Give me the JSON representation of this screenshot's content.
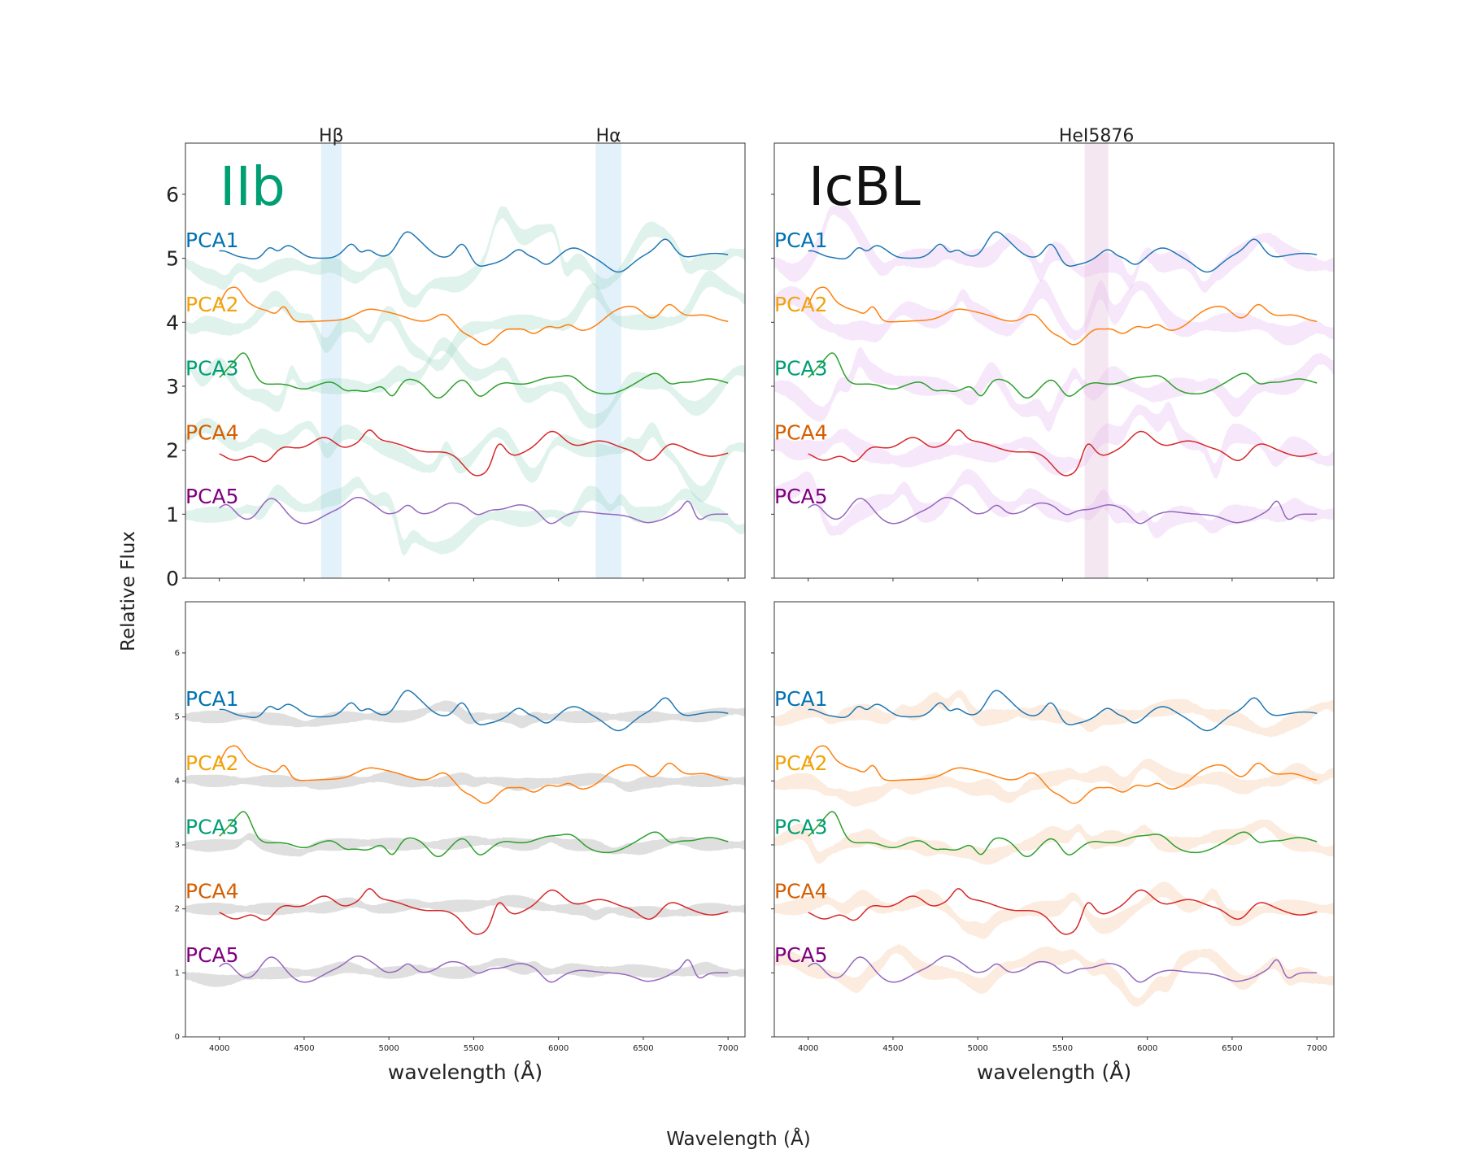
{
  "figure": {
    "ylabel": "Relative Flux",
    "xlabel": "Wavelength (Å)"
  },
  "colors": {
    "pca_curves": [
      "#1f77b4",
      "#ff7f0e",
      "#2ca02c",
      "#d62728",
      "#9467bd"
    ],
    "pca_labels": [
      "#0072b2",
      "#f0a30a",
      "#009e73",
      "#d55e00",
      "#800080"
    ],
    "IIb_title": "#009e73",
    "IcBL_title": "#111111",
    "bands": {
      "IIb": "#9ad8c0",
      "IcBL": "#e2b8ee",
      "gray": "#b8b8b8",
      "peach": "#f6c9a4"
    },
    "line_regions": {
      "hydrogen": "#cce6f7",
      "helium": "#ecd4e6"
    }
  },
  "chart_data": [
    {
      "type": "line",
      "panel": "top-left",
      "title": "IIb",
      "xlabel": "",
      "ylabel": "",
      "xlim": [
        3800,
        7100
      ],
      "ylim": [
        0,
        6.8
      ],
      "xticks": [],
      "yticks": [
        "0",
        "1",
        "2",
        "3",
        "4",
        "5",
        "6"
      ],
      "band_style": "IIb",
      "line_regions": [
        {
          "label": "Hβ",
          "range": [
            4600,
            4720
          ],
          "style": "hydrogen"
        },
        {
          "label": "Hα",
          "range": [
            6220,
            6370
          ],
          "style": "hydrogen"
        }
      ],
      "series": [
        {
          "name": "PCA1",
          "offset": 5
        },
        {
          "name": "PCA2",
          "offset": 4
        },
        {
          "name": "PCA3",
          "offset": 3
        },
        {
          "name": "PCA4",
          "offset": 2
        },
        {
          "name": "PCA5",
          "offset": 1
        }
      ]
    },
    {
      "type": "line",
      "panel": "top-right",
      "title": "IcBL",
      "xlabel": "",
      "ylabel": "",
      "xlim": [
        3800,
        7100
      ],
      "ylim": [
        0,
        6.8
      ],
      "xticks": [],
      "yticks": [],
      "band_style": "IcBL",
      "line_regions": [
        {
          "label": "HeI5876",
          "range": [
            5630,
            5770
          ],
          "style": "helium"
        }
      ],
      "series": [
        {
          "name": "PCA1",
          "offset": 5
        },
        {
          "name": "PCA2",
          "offset": 4
        },
        {
          "name": "PCA3",
          "offset": 3
        },
        {
          "name": "PCA4",
          "offset": 2
        },
        {
          "name": "PCA5",
          "offset": 1
        }
      ]
    },
    {
      "type": "line",
      "panel": "bottom-left",
      "title": "",
      "xlabel": "wavelength (Å)",
      "ylabel": "",
      "xlim": [
        3800,
        7100
      ],
      "ylim": [
        0,
        6.8
      ],
      "xticks": [
        "4000",
        "4500",
        "5000",
        "5500",
        "6000",
        "6500",
        "7000"
      ],
      "yticks": [
        "0",
        "1",
        "2",
        "3",
        "4",
        "5",
        "6"
      ],
      "band_style": "gray",
      "line_regions": [],
      "series": [
        {
          "name": "PCA1",
          "offset": 5
        },
        {
          "name": "PCA2",
          "offset": 4
        },
        {
          "name": "PCA3",
          "offset": 3
        },
        {
          "name": "PCA4",
          "offset": 2
        },
        {
          "name": "PCA5",
          "offset": 1
        }
      ]
    },
    {
      "type": "line",
      "panel": "bottom-right",
      "title": "",
      "xlabel": "wavelength (Å)",
      "ylabel": "",
      "xlim": [
        3800,
        7100
      ],
      "ylim": [
        0,
        6.8
      ],
      "xticks": [
        "4000",
        "4500",
        "5000",
        "5500",
        "6000",
        "6500",
        "7000"
      ],
      "yticks": [],
      "band_style": "peach",
      "line_regions": [],
      "series": [
        {
          "name": "PCA1",
          "offset": 5
        },
        {
          "name": "PCA2",
          "offset": 4
        },
        {
          "name": "PCA3",
          "offset": 3
        },
        {
          "name": "PCA4",
          "offset": 2
        },
        {
          "name": "PCA5",
          "offset": 1
        }
      ]
    }
  ]
}
